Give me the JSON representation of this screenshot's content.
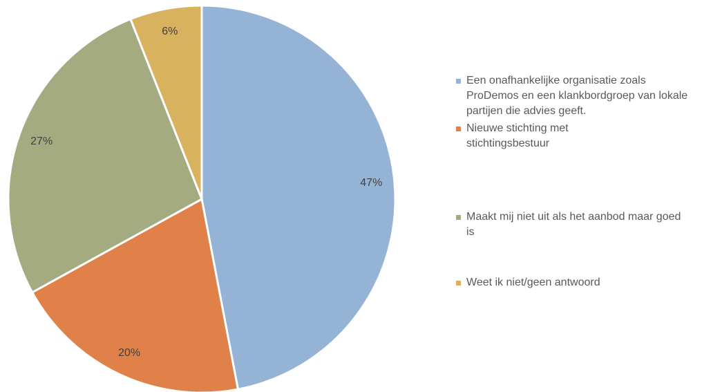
{
  "chart_data": {
    "type": "pie",
    "categories": [
      "Een onafhankelijke organisatie zoals ProDemos en een klankbordgroep van lokale partijen die advies geeft.",
      "Nieuwe stichting met stichtingsbestuur",
      "Maakt mij niet uit als het aanbod maar goed is",
      "Weet ik niet/geen antwoord"
    ],
    "values": [
      47,
      20,
      27,
      6
    ],
    "value_labels": [
      "47%",
      "20%",
      "27%",
      "6%"
    ],
    "colors": [
      "#95b3d4",
      "#e0814a",
      "#a5ab80",
      "#d8b25e"
    ],
    "legend": "right"
  }
}
